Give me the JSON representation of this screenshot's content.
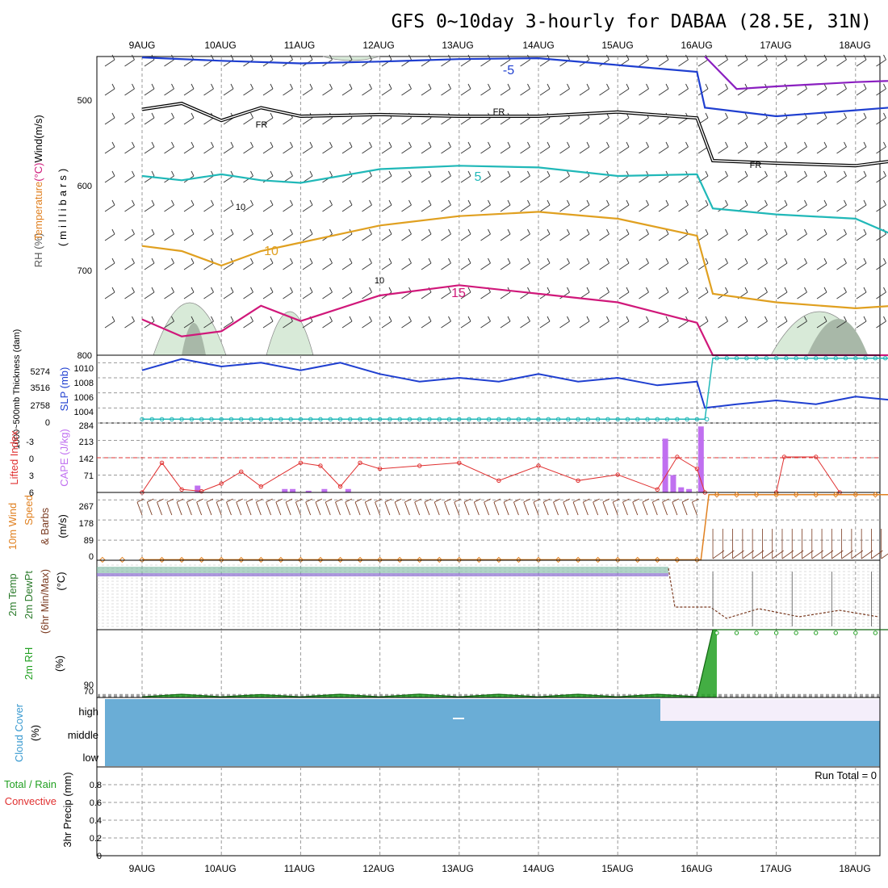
{
  "title": "GFS 0~10day 3-hourly for DABAA (28.5E, 31N)",
  "date_ticks": [
    "9AUG",
    "10AUG",
    "11AUG",
    "12AUG",
    "13AUG",
    "14AUG",
    "15AUG",
    "16AUG",
    "17AUG",
    "18AUG"
  ],
  "colors": {
    "frame": "#000000",
    "grid": "#999999",
    "blue": "#1f3fd0",
    "cyan": "#20b8b8",
    "orange": "#e0a020",
    "magenta": "#d0187a",
    "purple": "#8a1fc0",
    "cape": "#c070f0",
    "li": "#e03030",
    "wind": "#e08020",
    "barb": "#7a3a20",
    "rh": "#22a022",
    "cloud": "#6aadd6",
    "cloud_high": "#f4eefa"
  },
  "chart_data": [
    {
      "type": "line",
      "panel": "upper-air",
      "ylabel_parts": [
        "RH (%)",
        "Temperature",
        "(°C)",
        "Wind",
        "(m/s)"
      ],
      "ylabel_units": "(millibars)",
      "y_ticks": [
        500,
        600,
        700,
        800
      ],
      "ylim": [
        450,
        800
      ],
      "contour_labels": [
        "-5",
        "FR",
        "FR",
        "FR",
        "5",
        "10",
        "10",
        "15",
        "10"
      ],
      "series": [
        {
          "color": "blue",
          "x": [
            0,
            1,
            2,
            3,
            4,
            5,
            6,
            7,
            7.1,
            8,
            9,
            10.5
          ],
          "values": [
            451,
            455,
            458,
            456,
            453,
            452,
            460,
            468,
            510,
            520,
            513,
            502
          ]
        },
        {
          "color": "black",
          "x": [
            0,
            0.5,
            1,
            1.5,
            2,
            3,
            4,
            5,
            6,
            7,
            7.2,
            8,
            9,
            10.5
          ],
          "values": [
            512,
            505,
            525,
            510,
            520,
            518,
            520,
            520,
            515,
            522,
            572,
            575,
            578,
            560
          ]
        },
        {
          "color": "cyan",
          "x": [
            0,
            0.5,
            1,
            1.5,
            2,
            3,
            4,
            5,
            6,
            7,
            7.2,
            8,
            9,
            9.5,
            10.5
          ],
          "values": [
            590,
            595,
            588,
            595,
            598,
            582,
            578,
            580,
            590,
            588,
            628,
            635,
            640,
            660,
            615
          ]
        },
        {
          "color": "orange",
          "x": [
            0,
            0.5,
            1,
            1.5,
            2,
            3,
            4,
            5,
            6,
            7,
            7.2,
            8,
            9,
            9.5,
            10.5
          ],
          "values": [
            672,
            678,
            695,
            678,
            668,
            648,
            637,
            632,
            640,
            660,
            728,
            738,
            745,
            742,
            690
          ]
        },
        {
          "color": "magenta",
          "x": [
            0,
            0.5,
            1,
            1.5,
            2,
            3,
            4,
            5,
            6,
            7,
            7.2,
            8,
            9,
            10.5
          ],
          "values": [
            758,
            778,
            772,
            742,
            760,
            730,
            718,
            728,
            738,
            762,
            800,
            800,
            800,
            800
          ]
        },
        {
          "color": "purple",
          "x": [
            7.1,
            7.5,
            8,
            9,
            10.5
          ],
          "values": [
            450,
            488,
            485,
            480,
            475
          ]
        }
      ]
    },
    {
      "type": "line",
      "panel": "slp",
      "ylabel_left": "1000~500mb Thickness (dam)",
      "ylabel_right": "SLP (mb)",
      "thickness_ticks": [
        "5274",
        "3516",
        "2758",
        "0"
      ],
      "y_ticks": [
        1004,
        1006,
        1008,
        1010
      ],
      "ylim": [
        1002,
        1011
      ],
      "series": [
        {
          "name": "SLP",
          "color": "blue",
          "x": [
            0,
            0.5,
            1,
            1.5,
            2,
            2.5,
            3,
            3.5,
            4,
            4.5,
            5,
            5.5,
            6,
            6.5,
            7,
            7.1,
            7.5,
            8,
            8.5,
            9,
            9.5,
            10,
            10.5
          ],
          "values": [
            1009,
            1010.5,
            1009.5,
            1010,
            1009,
            1010,
            1008.5,
            1007.5,
            1008,
            1007.5,
            1008.5,
            1007.5,
            1008,
            1007,
            1007.5,
            1004,
            1004.5,
            1005,
            1004.5,
            1005.5,
            1005,
            1006,
            1005
          ]
        },
        {
          "name": "Thickness",
          "color": "cyan",
          "x": [
            0,
            7.1,
            7.2,
            10.5
          ],
          "values": [
            1002.5,
            1002.5,
            1010.6,
            1010.6
          ]
        }
      ]
    },
    {
      "type": "bar",
      "panel": "cape",
      "ylabel_left": "Lifted Index",
      "ylabel_right": "CAPE (J/kg)",
      "li_ticks": [
        "-3",
        "0",
        "3",
        "6"
      ],
      "y_ticks": [
        71,
        142,
        213,
        284
      ],
      "ylim": [
        0,
        284
      ],
      "cape_x": [
        0.7,
        1.8,
        1.9,
        2.1,
        2.3,
        2.6,
        6.6,
        6.7,
        6.8,
        6.9,
        7.05
      ],
      "cape_values": [
        28,
        14,
        14,
        7,
        14,
        14,
        220,
        71,
        21,
        14,
        270
      ],
      "li_x": [
        0,
        0.25,
        0.5,
        0.75,
        1,
        1.25,
        1.5,
        2,
        2.25,
        2.5,
        2.75,
        3,
        3.5,
        4,
        4.5,
        5,
        5.5,
        6,
        6.5,
        6.75,
        7,
        7.1,
        8,
        8.1,
        8.5,
        8.8
      ],
      "li_values": [
        6,
        1,
        5.5,
        5.8,
        4.5,
        2.5,
        5,
        1,
        1.5,
        5,
        1,
        2,
        1.5,
        1,
        4,
        1.5,
        4,
        3,
        5.5,
        0,
        2,
        6,
        6,
        0,
        0,
        6
      ]
    },
    {
      "type": "line",
      "panel": "wind",
      "ylabel_parts": [
        "10m Wind",
        "Speed",
        "& Barbs",
        "(m/s)"
      ],
      "y_ticks": [
        0,
        89,
        178,
        267
      ],
      "ylim": [
        0,
        300
      ],
      "series": [
        {
          "name": "Speed",
          "color": "wind",
          "x": [
            0,
            7.05,
            7.15,
            10.5
          ],
          "values": [
            2,
            2,
            290,
            290
          ]
        }
      ]
    },
    {
      "type": "line",
      "panel": "temperature",
      "ylabel_parts": [
        "2m Temp",
        "2m DewPt",
        "(6hr Min/Max)",
        "(°C)"
      ],
      "ylim": [
        -1500,
        40
      ],
      "series": [
        {
          "name": "Temp",
          "color": "cyan",
          "x": [
            0,
            7.1,
            7.2,
            10.5
          ],
          "values": [
            25,
            25,
            -1200,
            -1200
          ]
        }
      ]
    },
    {
      "type": "area",
      "panel": "rh",
      "ylabel_parts": [
        "2m RH",
        "(%)"
      ],
      "y_ticks": [
        50,
        60,
        70,
        80,
        90
      ],
      "ylim": [
        50,
        940
      ],
      "series": [
        {
          "name": "RH",
          "color": "rh",
          "x": [
            0,
            0.5,
            1,
            1.5,
            2,
            2.5,
            3,
            3.5,
            4,
            4.5,
            5,
            5.5,
            6,
            6.5,
            7,
            7.2,
            7.25,
            10.5
          ],
          "values": [
            58,
            92,
            58,
            88,
            58,
            92,
            58,
            94,
            58,
            92,
            58,
            92,
            58,
            92,
            60,
            940,
            940,
            940
          ]
        }
      ]
    },
    {
      "type": "area",
      "panel": "cloud",
      "ylabel_parts": [
        "Cloud Cover",
        "(%)"
      ],
      "categories": [
        "high",
        "middle",
        "low"
      ]
    },
    {
      "type": "line",
      "panel": "precip",
      "ylabel_parts": [
        "Total / Rain",
        "Convective",
        "3hr Precip (mm)"
      ],
      "y_ticks": [
        0,
        0.2,
        0.4,
        0.6,
        0.8
      ],
      "ylim": [
        0,
        1
      ],
      "annotation": "Run Total = 0"
    }
  ]
}
